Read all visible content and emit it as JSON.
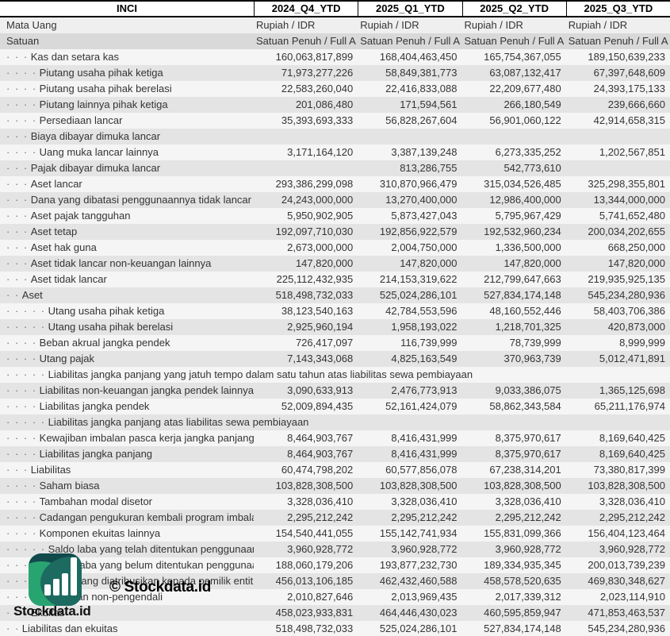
{
  "header": {
    "entity": "INCI",
    "periods": [
      "2024_Q4_YTD",
      "2025_Q1_YTD",
      "2025_Q2_YTD",
      "2025_Q3_YTD"
    ]
  },
  "meta": {
    "currency": {
      "label": "Mata Uang",
      "values": [
        "Rupiah / IDR",
        "Rupiah / IDR",
        "Rupiah / IDR",
        "Rupiah / IDR"
      ]
    },
    "unit": {
      "label": "Satuan",
      "values": [
        "Satuan Penuh / Full A",
        "Satuan Penuh / Full A",
        "Satuan Penuh / Full A",
        "Satuan Penuh / Full A"
      ]
    }
  },
  "table": {
    "rows": [
      {
        "label": "Kas dan setara kas",
        "level": 3,
        "values": [
          "160,063,817,899",
          "168,404,463,450",
          "165,754,367,055",
          "189,150,639,233"
        ]
      },
      {
        "label": "Piutang usaha pihak ketiga",
        "level": 4,
        "values": [
          "71,973,277,226",
          "58,849,381,773",
          "63,087,132,417",
          "67,397,648,609"
        ]
      },
      {
        "label": "Piutang usaha pihak berelasi",
        "level": 4,
        "values": [
          "22,583,260,040",
          "22,416,833,088",
          "22,209,677,480",
          "24,393,175,133"
        ]
      },
      {
        "label": "Piutang lainnya pihak ketiga",
        "level": 4,
        "values": [
          "201,086,480",
          "171,594,561",
          "266,180,549",
          "239,666,660"
        ]
      },
      {
        "label": "Persediaan lancar",
        "level": 4,
        "values": [
          "35,393,693,333",
          "56,828,267,604",
          "56,901,060,122",
          "42,914,658,315"
        ]
      },
      {
        "label": "Biaya dibayar dimuka lancar",
        "level": 3,
        "values": [
          "",
          "",
          "",
          ""
        ]
      },
      {
        "label": "Uang muka lancar lainnya",
        "level": 4,
        "values": [
          "3,171,164,120",
          "3,387,139,248",
          "6,273,335,252",
          "1,202,567,851"
        ]
      },
      {
        "label": "Pajak dibayar dimuka lancar",
        "level": 3,
        "values": [
          "",
          "813,286,755",
          "542,773,610",
          ""
        ]
      },
      {
        "label": "Aset lancar",
        "level": 3,
        "values": [
          "293,386,299,098",
          "310,870,966,479",
          "315,034,526,485",
          "325,298,355,801"
        ]
      },
      {
        "label": "Dana yang dibatasi penggunaannya tidak lancar",
        "level": 3,
        "values": [
          "24,243,000,000",
          "13,270,400,000",
          "12,986,400,000",
          "13,344,000,000"
        ]
      },
      {
        "label": "Aset pajak tangguhan",
        "level": 3,
        "values": [
          "5,950,902,905",
          "5,873,427,043",
          "5,795,967,429",
          "5,741,652,480"
        ]
      },
      {
        "label": "Aset tetap",
        "level": 3,
        "values": [
          "192,097,710,030",
          "192,856,922,579",
          "192,532,960,234",
          "200,034,202,655"
        ]
      },
      {
        "label": "Aset hak guna",
        "level": 3,
        "values": [
          "2,673,000,000",
          "2,004,750,000",
          "1,336,500,000",
          "668,250,000"
        ]
      },
      {
        "label": "Aset tidak lancar non-keuangan lainnya",
        "level": 3,
        "values": [
          "147,820,000",
          "147,820,000",
          "147,820,000",
          "147,820,000"
        ]
      },
      {
        "label": "Aset tidak lancar",
        "level": 3,
        "values": [
          "225,112,432,935",
          "214,153,319,622",
          "212,799,647,663",
          "219,935,925,135"
        ]
      },
      {
        "label": "Aset",
        "level": 2,
        "values": [
          "518,498,732,033",
          "525,024,286,101",
          "527,834,174,148",
          "545,234,280,936"
        ]
      },
      {
        "label": "Utang usaha pihak ketiga",
        "level": 5,
        "values": [
          "38,123,540,163",
          "42,784,553,596",
          "48,160,552,446",
          "58,403,706,386"
        ]
      },
      {
        "label": "Utang usaha pihak berelasi",
        "level": 5,
        "values": [
          "2,925,960,194",
          "1,958,193,022",
          "1,218,701,325",
          "420,873,000"
        ]
      },
      {
        "label": "Beban akrual jangka pendek",
        "level": 4,
        "values": [
          "726,417,097",
          "116,739,999",
          "78,739,999",
          "8,999,999"
        ]
      },
      {
        "label": "Utang pajak",
        "level": 4,
        "values": [
          "7,143,343,068",
          "4,825,163,549",
          "370,963,739",
          "5,012,471,891"
        ]
      },
      {
        "label": "Liabilitas jangka panjang yang jatuh tempo dalam satu tahun atas liabilitas sewa pembiayaan",
        "level": 5,
        "values": [
          "",
          "",
          "",
          ""
        ]
      },
      {
        "label": "Liabilitas non-keuangan jangka pendek lainnya",
        "level": 4,
        "values": [
          "3,090,633,913",
          "2,476,773,913",
          "9,033,386,075",
          "1,365,125,698"
        ]
      },
      {
        "label": "Liabilitas jangka pendek",
        "level": 4,
        "values": [
          "52,009,894,435",
          "52,161,424,079",
          "58,862,343,584",
          "65,211,176,974"
        ]
      },
      {
        "label": "Liabilitas jangka panjang atas liabilitas sewa pembiayaan",
        "level": 5,
        "values": [
          "",
          "",
          "",
          ""
        ]
      },
      {
        "label": "Kewajiban imbalan pasca kerja jangka panjang",
        "level": 4,
        "values": [
          "8,464,903,767",
          "8,416,431,999",
          "8,375,970,617",
          "8,169,640,425"
        ]
      },
      {
        "label": "Liabilitas jangka panjang",
        "level": 4,
        "values": [
          "8,464,903,767",
          "8,416,431,999",
          "8,375,970,617",
          "8,169,640,425"
        ]
      },
      {
        "label": "Liabilitas",
        "level": 3,
        "values": [
          "60,474,798,202",
          "60,577,856,078",
          "67,238,314,201",
          "73,380,817,399"
        ]
      },
      {
        "label": "Saham biasa",
        "level": 4,
        "values": [
          "103,828,308,500",
          "103,828,308,500",
          "103,828,308,500",
          "103,828,308,500"
        ]
      },
      {
        "label": "Tambahan modal disetor",
        "level": 4,
        "values": [
          "3,328,036,410",
          "3,328,036,410",
          "3,328,036,410",
          "3,328,036,410"
        ]
      },
      {
        "label": "Cadangan pengukuran kembali program imbala",
        "level": 4,
        "values": [
          "2,295,212,242",
          "2,295,212,242",
          "2,295,212,242",
          "2,295,212,242"
        ]
      },
      {
        "label": "Komponen ekuitas lainnya",
        "level": 4,
        "values": [
          "154,540,441,055",
          "155,142,741,934",
          "155,831,099,366",
          "156,404,123,464"
        ]
      },
      {
        "label": "Saldo laba yang telah ditentukan penggunaann",
        "level": 5,
        "values": [
          "3,960,928,772",
          "3,960,928,772",
          "3,960,928,772",
          "3,960,928,772"
        ]
      },
      {
        "label": "Saldo laba yang belum ditentukan penggunaan",
        "level": 5,
        "values": [
          "188,060,179,206",
          "193,877,232,730",
          "189,334,935,345",
          "200,013,739,239"
        ]
      },
      {
        "label": "Ekuitas yang diatribusikan kepada pemilik entit",
        "level": 4,
        "values": [
          "456,013,106,185",
          "462,432,460,588",
          "458,578,520,635",
          "469,830,348,627"
        ]
      },
      {
        "label": "Kepentingan non-pengendali",
        "level": 3,
        "values": [
          "2,010,827,646",
          "2,013,969,435",
          "2,017,339,312",
          "2,023,114,910"
        ]
      },
      {
        "label": "Ekuitas",
        "level": 3,
        "values": [
          "458,023,933,831",
          "464,446,430,023",
          "460,595,859,947",
          "471,853,463,537"
        ]
      },
      {
        "label": "Liabilitas dan ekuitas",
        "level": 2,
        "values": [
          "518,498,732,033",
          "525,024,286,101",
          "527,834,174,148",
          "545,234,280,936"
        ]
      }
    ]
  },
  "watermark": {
    "copyright": "© Stockdata.id",
    "brand": "Stockdata.id"
  },
  "colors": {
    "stripe_light": "#f5f5f5",
    "stripe_dark": "#e4e4e4",
    "unit_row": "#d9d9d9",
    "currency_row": "#efefef",
    "logo_dark_teal": "#11494d",
    "logo_green": "#28a471",
    "logo_mid_teal": "#1d6a60",
    "text": "#343434"
  }
}
